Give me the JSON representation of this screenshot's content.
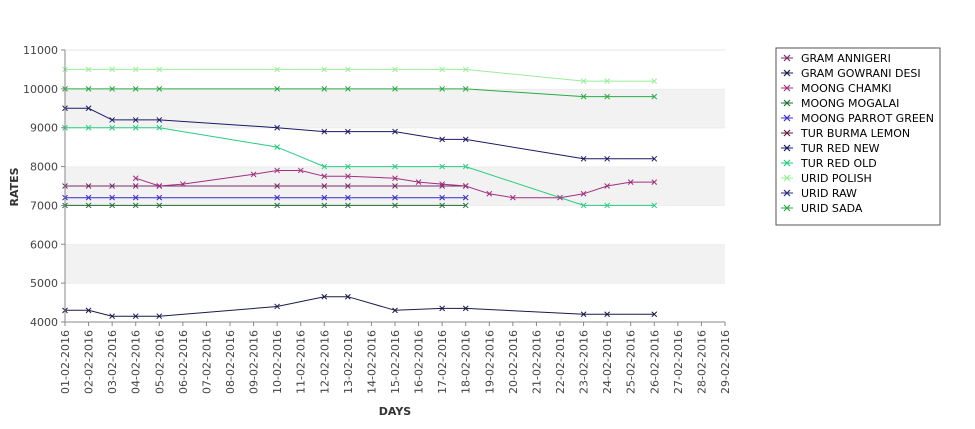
{
  "chart_data": {
    "type": "line",
    "xlabel": "DAYS",
    "ylabel": "RATES",
    "ylim": [
      4000,
      11000
    ],
    "y_ticks": [
      4000,
      5000,
      6000,
      7000,
      8000,
      9000,
      10000,
      11000
    ],
    "grid": "alternating horizontal bands",
    "legend_position": "right",
    "categories": [
      "01-02-2016",
      "02-02-2016",
      "03-02-2016",
      "04-02-2016",
      "05-02-2016",
      "06-02-2016",
      "07-02-2016",
      "08-02-2016",
      "09-02-2016",
      "10-02-2016",
      "11-02-2016",
      "12-02-2016",
      "13-02-2016",
      "14-02-2016",
      "15-02-2016",
      "16-02-2016",
      "17-02-2016",
      "18-02-2016",
      "19-02-2016",
      "20-02-2016",
      "21-02-2016",
      "22-02-2016",
      "23-02-2016",
      "24-02-2016",
      "25-02-2016",
      "26-02-2016",
      "27-02-2016",
      "28-02-2016",
      "29-02-2016"
    ],
    "series": [
      {
        "name": "GRAM ANNIGERI",
        "color": "#7a2a6a",
        "values": [
          7500,
          7500,
          7500,
          7500,
          7500,
          null,
          null,
          null,
          null,
          7500,
          null,
          7500,
          7500,
          null,
          7500,
          null,
          7500,
          7500,
          null,
          null,
          null,
          null,
          null,
          null,
          null,
          null,
          null,
          null,
          null
        ]
      },
      {
        "name": "GRAM GOWRANI DESI",
        "color": "#1a1a4a",
        "values": [
          4300,
          4300,
          4150,
          4150,
          4150,
          null,
          null,
          null,
          null,
          4400,
          null,
          4650,
          4650,
          null,
          4300,
          null,
          4350,
          4350,
          null,
          null,
          null,
          null,
          4200,
          4200,
          null,
          4200,
          null,
          null,
          null
        ]
      },
      {
        "name": "MOONG CHAMKI",
        "color": "#a03080",
        "values": [
          null,
          null,
          null,
          7700,
          7500,
          7550,
          null,
          null,
          7800,
          7900,
          7900,
          7750,
          7750,
          null,
          7700,
          7600,
          7550,
          7500,
          7300,
          7200,
          null,
          7200,
          7300,
          7500,
          7600,
          7600,
          null,
          null,
          null
        ]
      },
      {
        "name": "MOONG MOGALAI",
        "color": "#1f6d3a",
        "values": [
          7000,
          7000,
          7000,
          7000,
          7000,
          null,
          null,
          null,
          null,
          7000,
          null,
          7000,
          7000,
          null,
          7000,
          null,
          7000,
          7000,
          null,
          null,
          null,
          null,
          null,
          null,
          null,
          null,
          null,
          null,
          null
        ]
      },
      {
        "name": "MOONG PARROT GREEN",
        "color": "#3a2acc",
        "values": [
          7200,
          7200,
          7200,
          7200,
          7200,
          null,
          null,
          null,
          null,
          7200,
          null,
          7200,
          7200,
          null,
          7200,
          null,
          7200,
          7200,
          null,
          null,
          null,
          null,
          null,
          null,
          null,
          null,
          null,
          null,
          null
        ]
      },
      {
        "name": "TUR BURMA LEMON",
        "color": "#661a44",
        "values": [
          null,
          null,
          null,
          null,
          null,
          null,
          null,
          null,
          null,
          null,
          null,
          null,
          null,
          null,
          null,
          null,
          null,
          null,
          null,
          null,
          null,
          null,
          null,
          null,
          null,
          null,
          null,
          null,
          null
        ]
      },
      {
        "name": "TUR RED NEW",
        "color": "#1a1a66",
        "values": [
          9500,
          9500,
          9200,
          9200,
          9200,
          null,
          null,
          null,
          null,
          9000,
          null,
          8900,
          8900,
          null,
          8900,
          null,
          8700,
          8700,
          null,
          null,
          null,
          null,
          8200,
          8200,
          null,
          8200,
          null,
          null,
          null
        ]
      },
      {
        "name": "TUR RED OLD",
        "color": "#26cc7f",
        "values": [
          9000,
          9000,
          9000,
          9000,
          9000,
          null,
          null,
          null,
          null,
          8500,
          null,
          8000,
          8000,
          null,
          8000,
          null,
          8000,
          8000,
          null,
          null,
          null,
          null,
          7000,
          7000,
          null,
          7000,
          null,
          null,
          null
        ]
      },
      {
        "name": "URID POLISH",
        "color": "#99ee99",
        "values": [
          10500,
          10500,
          10500,
          10500,
          10500,
          null,
          null,
          null,
          null,
          10500,
          null,
          10500,
          10500,
          null,
          10500,
          null,
          10500,
          10500,
          null,
          null,
          null,
          null,
          10200,
          10200,
          null,
          10200,
          null,
          null,
          null
        ]
      },
      {
        "name": "URID RAW",
        "color": "#2a2a80",
        "values": [
          null,
          null,
          null,
          null,
          null,
          null,
          null,
          null,
          null,
          null,
          null,
          null,
          null,
          null,
          null,
          null,
          null,
          null,
          null,
          null,
          null,
          null,
          null,
          null,
          null,
          null,
          null,
          null,
          null
        ]
      },
      {
        "name": "URID SADA",
        "color": "#2aaa44",
        "values": [
          10000,
          10000,
          10000,
          10000,
          10000,
          null,
          null,
          null,
          null,
          10000,
          null,
          10000,
          10000,
          null,
          10000,
          null,
          10000,
          10000,
          null,
          null,
          null,
          null,
          9800,
          9800,
          null,
          9800,
          null,
          null,
          null
        ]
      }
    ]
  }
}
